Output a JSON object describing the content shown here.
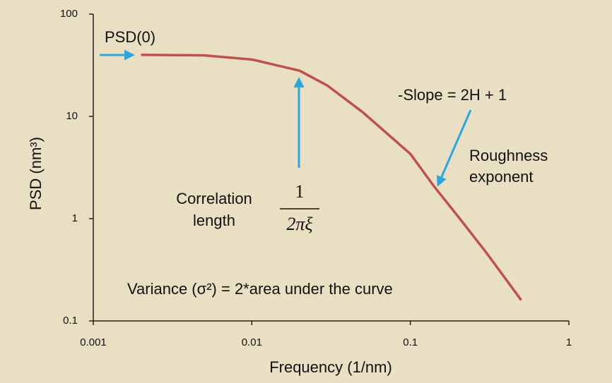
{
  "chart_data": {
    "type": "line",
    "xlabel": "Frequency (1/nm)",
    "ylabel": "PSD (nm³)",
    "xscale": "log",
    "yscale": "log",
    "xlim": [
      0.001,
      1
    ],
    "ylim": [
      0.1,
      100
    ],
    "xticks": [
      0.001,
      0.01,
      0.1,
      1
    ],
    "yticks": [
      0.1,
      1,
      10,
      100
    ],
    "series": [
      {
        "color": "#c0504d",
        "x": [
          0.002,
          0.005,
          0.01,
          0.02,
          0.03,
          0.05,
          0.1,
          0.14,
          0.2,
          0.3,
          0.5
        ],
        "values": [
          40,
          39.5,
          36,
          28,
          20,
          11,
          4.3,
          2.1,
          1.05,
          0.47,
          0.16
        ]
      }
    ],
    "annotations": [
      "PSD(0)",
      "-Slope = 2H + 1",
      "Roughness",
      "exponent",
      "Correlation",
      "length",
      "1",
      "2πξ",
      "Variance (σ²)  = 2*area under the curve"
    ]
  }
}
